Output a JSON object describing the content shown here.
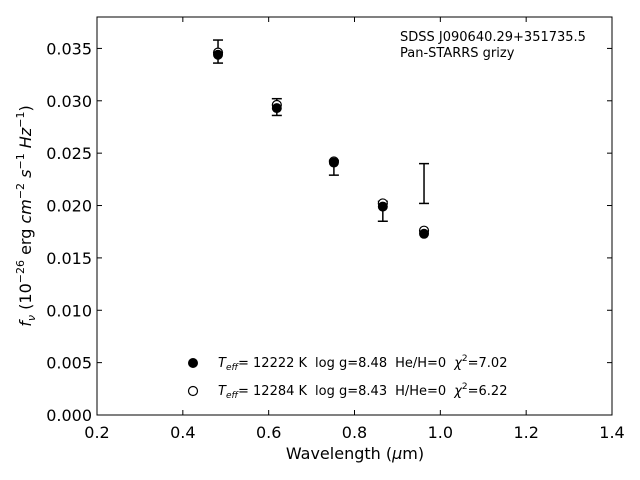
{
  "chart_data": {
    "type": "scatter",
    "annotation": [
      "SDSS J090640.29+351735.5",
      "Pan-STARRS grizy"
    ],
    "xlim": [
      0.2,
      1.4
    ],
    "ylim": [
      0.0,
      0.038
    ],
    "xticks": [
      0.2,
      0.4,
      0.6,
      0.8,
      1.0,
      1.2,
      1.4
    ],
    "xtick_labels": [
      "0.2",
      "0.4",
      "0.6",
      "0.8",
      "1.0",
      "1.2",
      "1.4"
    ],
    "yticks": [
      0.0,
      0.005,
      0.01,
      0.015,
      0.02,
      0.025,
      0.03,
      0.035
    ],
    "ytick_labels": [
      "0.000",
      "0.005",
      "0.010",
      "0.015",
      "0.020",
      "0.025",
      "0.030",
      "0.035"
    ],
    "grid": false,
    "observed": {
      "x": [
        0.482,
        0.619,
        0.752,
        0.866,
        0.962
      ],
      "y": [
        0.0347,
        0.0294,
        0.0236,
        0.0195,
        0.0221
      ],
      "yerr_low": [
        0.0336,
        0.0286,
        0.0229,
        0.0185,
        0.0202
      ],
      "yerr_high": [
        0.0358,
        0.0302,
        0.0243,
        0.0204,
        0.024
      ]
    },
    "series": [
      {
        "marker": "filled-circle",
        "x": [
          0.482,
          0.619,
          0.752,
          0.866,
          0.962
        ],
        "y": [
          0.0344,
          0.0293,
          0.0241,
          0.0199,
          0.0173
        ]
      },
      {
        "marker": "open-circle",
        "x": [
          0.482,
          0.619,
          0.752,
          0.866,
          0.962
        ],
        "y": [
          0.0346,
          0.0296,
          0.0242,
          0.0202,
          0.0176
        ]
      }
    ],
    "legend": {
      "placement": "lower-center",
      "entries": [
        {
          "marker": "filled-circle",
          "teff_value": "= 12222 K",
          "logg": "log g=8.48",
          "comp": "He/H=0",
          "chi_value": "=7.02"
        },
        {
          "marker": "open-circle",
          "teff_value": "= 12284 K",
          "logg": "log g=8.43",
          "comp": "H/He=0",
          "chi_value": "=6.22"
        }
      ]
    }
  }
}
